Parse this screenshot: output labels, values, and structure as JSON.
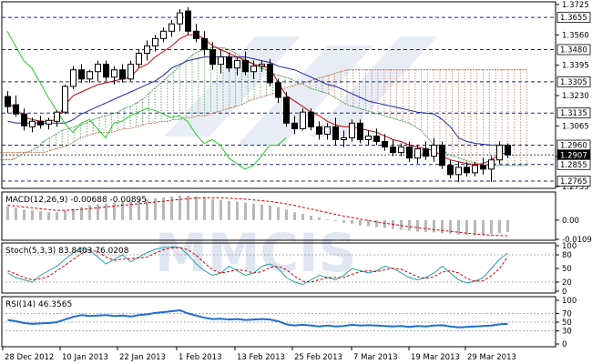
{
  "chart_data": {
    "type": "candlestick",
    "x_labels": [
      "28 Dec 2012",
      "10 Jan 2013",
      "22 Jan 2013",
      "1 Feb 2013",
      "13 Feb 2013",
      "25 Feb 2013",
      "7 Mar 2013",
      "19 Mar 2013",
      "29 Mar 2013"
    ],
    "price_ticks": [
      "1.3725",
      "1.3560",
      "1.3395",
      "1.3230",
      "1.3065",
      "1.2900",
      "1.2735"
    ],
    "price_levels": [
      "1.3655",
      "1.3480",
      "1.3305",
      "1.3135",
      "1.2960",
      "1.2907",
      "1.2855",
      "1.2765"
    ],
    "price_range": [
      1.2735,
      1.3725
    ],
    "candles": [
      [
        1.3225,
        1.3255,
        1.3135,
        1.317
      ],
      [
        1.318,
        1.323,
        1.3115,
        1.313
      ],
      [
        1.313,
        1.316,
        1.304,
        1.3065
      ],
      [
        1.306,
        1.311,
        1.303,
        1.309
      ],
      [
        1.309,
        1.312,
        1.305,
        1.307
      ],
      [
        1.3075,
        1.311,
        1.3045,
        1.3095
      ],
      [
        1.309,
        1.315,
        1.306,
        1.314
      ],
      [
        1.314,
        1.329,
        1.313,
        1.328
      ],
      [
        1.328,
        1.339,
        1.3265,
        1.337
      ],
      [
        1.337,
        1.34,
        1.33,
        1.332
      ],
      [
        1.332,
        1.337,
        1.33,
        1.336
      ],
      [
        1.336,
        1.342,
        1.331,
        1.34
      ],
      [
        1.34,
        1.342,
        1.331,
        1.333
      ],
      [
        1.333,
        1.339,
        1.329,
        1.337
      ],
      [
        1.337,
        1.34,
        1.33,
        1.332
      ],
      [
        1.332,
        1.342,
        1.331,
        1.34
      ],
      [
        1.34,
        1.348,
        1.338,
        1.346
      ],
      [
        1.346,
        1.353,
        1.342,
        1.35
      ],
      [
        1.35,
        1.356,
        1.347,
        1.354
      ],
      [
        1.354,
        1.36,
        1.352,
        1.358
      ],
      [
        1.358,
        1.364,
        1.355,
        1.362
      ],
      [
        1.362,
        1.37,
        1.358,
        1.368
      ],
      [
        1.369,
        1.371,
        1.356,
        1.358
      ],
      [
        1.358,
        1.362,
        1.352,
        1.354
      ],
      [
        1.354,
        1.358,
        1.345,
        1.348
      ],
      [
        1.348,
        1.352,
        1.337,
        1.34
      ],
      [
        1.34,
        1.348,
        1.335,
        1.344
      ],
      [
        1.344,
        1.346,
        1.336,
        1.338
      ],
      [
        1.338,
        1.344,
        1.334,
        1.342
      ],
      [
        1.342,
        1.347,
        1.334,
        1.336
      ],
      [
        1.336,
        1.342,
        1.332,
        1.339
      ],
      [
        1.339,
        1.342,
        1.336,
        1.34
      ],
      [
        1.34,
        1.343,
        1.328,
        1.33
      ],
      [
        1.33,
        1.332,
        1.319,
        1.322
      ],
      [
        1.322,
        1.325,
        1.306,
        1.308
      ],
      [
        1.308,
        1.312,
        1.302,
        1.305
      ],
      [
        1.305,
        1.316,
        1.304,
        1.314
      ],
      [
        1.314,
        1.316,
        1.304,
        1.306
      ],
      [
        1.306,
        1.309,
        1.299,
        1.302
      ],
      [
        1.302,
        1.308,
        1.299,
        1.306
      ],
      [
        1.306,
        1.311,
        1.296,
        1.299
      ],
      [
        1.299,
        1.304,
        1.295,
        1.3
      ],
      [
        1.3,
        1.31,
        1.298,
        1.308
      ],
      [
        1.308,
        1.31,
        1.297,
        1.299
      ],
      [
        1.299,
        1.304,
        1.296,
        1.301
      ],
      [
        1.301,
        1.305,
        1.296,
        1.298
      ],
      [
        1.298,
        1.302,
        1.293,
        1.295
      ],
      [
        1.295,
        1.299,
        1.29,
        1.292
      ],
      [
        1.292,
        1.297,
        1.29,
        1.295
      ],
      [
        1.295,
        1.298,
        1.287,
        1.289
      ],
      [
        1.289,
        1.296,
        1.286,
        1.294
      ],
      [
        1.294,
        1.298,
        1.288,
        1.29
      ],
      [
        1.29,
        1.3,
        1.287,
        1.296
      ],
      [
        1.296,
        1.298,
        1.283,
        1.285
      ],
      [
        1.285,
        1.288,
        1.278,
        1.28
      ],
      [
        1.28,
        1.287,
        1.276,
        1.284
      ],
      [
        1.284,
        1.287,
        1.279,
        1.281
      ],
      [
        1.281,
        1.287,
        1.279,
        1.285
      ],
      [
        1.285,
        1.289,
        1.28,
        1.283
      ],
      [
        1.283,
        1.29,
        1.276,
        1.288
      ],
      [
        1.288,
        1.298,
        1.286,
        1.296
      ],
      [
        1.296,
        1.297,
        1.289,
        1.2907
      ]
    ],
    "tenkan": [
      1.319,
      1.316,
      1.311,
      1.31,
      1.309,
      1.309,
      1.31,
      1.318,
      1.323,
      1.325,
      1.327,
      1.329,
      1.33,
      1.331,
      1.332,
      1.333,
      1.338,
      1.34,
      1.344,
      1.347,
      1.35,
      1.354,
      1.356,
      1.356,
      1.354,
      1.35,
      1.348,
      1.346,
      1.344,
      1.342,
      1.34,
      1.339,
      1.338,
      1.33,
      1.323,
      1.32,
      1.317,
      1.314,
      1.312,
      1.309,
      1.307,
      1.306,
      1.306,
      1.305,
      1.304,
      1.303,
      1.301,
      1.299,
      1.298,
      1.296,
      1.295,
      1.294,
      1.293,
      1.29,
      1.288,
      1.287,
      1.286,
      1.2855,
      1.286,
      1.288,
      1.291,
      1.292
    ],
    "kijun": [
      1.309,
      1.308,
      1.308,
      1.308,
      1.308,
      1.308,
      1.308,
      1.308,
      1.31,
      1.313,
      1.315,
      1.317,
      1.319,
      1.321,
      1.323,
      1.325,
      1.327,
      1.329,
      1.331,
      1.334,
      1.338,
      1.34,
      1.342,
      1.343,
      1.344,
      1.344,
      1.344,
      1.344,
      1.344,
      1.344,
      1.343,
      1.342,
      1.341,
      1.339,
      1.338,
      1.337,
      1.335,
      1.333,
      1.331,
      1.329,
      1.328,
      1.326,
      1.324,
      1.322,
      1.32,
      1.319,
      1.318,
      1.317,
      1.316,
      1.315,
      1.314,
      1.3135,
      1.313,
      1.31,
      1.306,
      1.3,
      1.298,
      1.297,
      1.2965,
      1.296,
      1.296,
      1.296
    ],
    "chikou": [
      1.358,
      1.35,
      1.342,
      1.338,
      1.33,
      1.322,
      1.315,
      1.308,
      1.303,
      1.308,
      1.31,
      1.305,
      1.3,
      1.308,
      1.309,
      1.312,
      1.314,
      1.316,
      1.315,
      1.313,
      1.311,
      1.312,
      1.309,
      1.302,
      1.297,
      1.299,
      1.296,
      1.289,
      1.286,
      1.283,
      1.285,
      1.29,
      1.296,
      1.296,
      1.3
    ],
    "senkou_a": [
      1.288,
      1.288,
      1.288,
      1.29,
      1.292,
      1.293,
      1.295,
      1.298,
      1.3,
      1.302,
      1.304,
      1.305,
      1.306,
      1.307,
      1.308,
      1.31,
      1.311,
      1.312,
      1.313,
      1.314,
      1.316,
      1.317,
      1.319,
      1.321,
      1.324,
      1.327,
      1.33,
      1.333,
      1.336,
      1.339,
      1.342,
      1.345,
      1.347,
      1.348,
      1.349,
      1.349,
      1.349,
      1.348,
      1.346,
      1.344,
      1.342,
      1.34,
      1.338,
      1.337,
      1.335,
      1.334,
      1.333,
      1.332,
      1.33,
      1.329,
      1.327,
      1.326,
      1.325,
      1.324,
      1.322,
      1.32,
      1.318,
      1.317,
      1.316,
      1.315,
      1.314,
      1.313,
      1.312,
      1.311,
      1.31,
      1.309,
      1.308,
      1.306,
      1.304,
      1.3,
      1.296,
      1.294,
      1.292,
      1.29,
      1.289,
      1.288,
      1.287,
      1.286,
      1.285,
      1.285,
      1.285,
      1.285,
      1.285,
      1.285,
      1.285,
      1.285
    ],
    "senkou_b": [
      1.292,
      1.292,
      1.292,
      1.292,
      1.292,
      1.292,
      1.292,
      1.292,
      1.293,
      1.294,
      1.295,
      1.296,
      1.298,
      1.3,
      1.301,
      1.302,
      1.303,
      1.303,
      1.303,
      1.304,
      1.305,
      1.305,
      1.306,
      1.307,
      1.308,
      1.308,
      1.309,
      1.309,
      1.31,
      1.31,
      1.311,
      1.311,
      1.312,
      1.312,
      1.313,
      1.314,
      1.315,
      1.316,
      1.317,
      1.318,
      1.32,
      1.321,
      1.322,
      1.323,
      1.324,
      1.325,
      1.327,
      1.328,
      1.329,
      1.33,
      1.331,
      1.332,
      1.333,
      1.334,
      1.335,
      1.336,
      1.337,
      1.337,
      1.337,
      1.337,
      1.337,
      1.337,
      1.337,
      1.337,
      1.337,
      1.337,
      1.337,
      1.337,
      1.337,
      1.337,
      1.337,
      1.337,
      1.337,
      1.337,
      1.337,
      1.337,
      1.337,
      1.337,
      1.337,
      1.337,
      1.337,
      1.337,
      1.337,
      1.337,
      1.337,
      1.337
    ],
    "macd": {
      "label": "MACD(12,26,9) -0.00688 -0.00895",
      "ticks": [
        "0.00",
        "-0.01095"
      ],
      "range": [
        -0.01095,
        0.0155
      ],
      "histogram": [
        0.008,
        0.007,
        0.006,
        0.0055,
        0.005,
        0.0045,
        0.0045,
        0.0055,
        0.0065,
        0.0075,
        0.0085,
        0.009,
        0.0095,
        0.01,
        0.0105,
        0.011,
        0.0115,
        0.012,
        0.0125,
        0.013,
        0.0135,
        0.014,
        0.014,
        0.0135,
        0.013,
        0.012,
        0.0115,
        0.011,
        0.0105,
        0.01,
        0.0095,
        0.009,
        0.0085,
        0.0075,
        0.006,
        0.0045,
        0.0035,
        0.0025,
        0.0015,
        0.0005,
        -0.0005,
        -0.0015,
        -0.002,
        -0.003,
        -0.0035,
        -0.004,
        -0.0045,
        -0.005,
        -0.0055,
        -0.006,
        -0.0065,
        -0.0068,
        -0.007,
        -0.0074,
        -0.0078,
        -0.0082,
        -0.0085,
        -0.0087,
        -0.0086,
        -0.008,
        -0.0074,
        -0.0069
      ],
      "signal": [
        0.0085,
        0.008,
        0.0075,
        0.007,
        0.0065,
        0.006,
        0.0056,
        0.0056,
        0.0058,
        0.0061,
        0.0066,
        0.007,
        0.0075,
        0.008,
        0.0085,
        0.0089,
        0.0094,
        0.0098,
        0.0103,
        0.0108,
        0.0113,
        0.0118,
        0.0122,
        0.0126,
        0.0128,
        0.0128,
        0.0127,
        0.0125,
        0.0122,
        0.0119,
        0.0115,
        0.0111,
        0.0106,
        0.01,
        0.0092,
        0.0083,
        0.0073,
        0.0063,
        0.0053,
        0.0043,
        0.0033,
        0.0023,
        0.0015,
        0.0006,
        -0.0002,
        -0.001,
        -0.0017,
        -0.0024,
        -0.0031,
        -0.0037,
        -0.0043,
        -0.0049,
        -0.0054,
        -0.0059,
        -0.0064,
        -0.0069,
        -0.0074,
        -0.0079,
        -0.0083,
        -0.0086,
        -0.0088,
        -0.0089
      ]
    },
    "stoch": {
      "label": "Stoch(5,3,3) 83.8403 76.0208",
      "ticks": [
        "100",
        "80",
        "50",
        "20",
        "0"
      ],
      "range": [
        0,
        100
      ],
      "main": [
        40,
        30,
        25,
        20,
        35,
        45,
        55,
        70,
        85,
        95,
        90,
        75,
        60,
        70,
        80,
        65,
        75,
        85,
        92,
        96,
        97,
        96,
        80,
        60,
        45,
        35,
        40,
        55,
        45,
        35,
        40,
        55,
        60,
        50,
        30,
        20,
        15,
        25,
        35,
        30,
        25,
        35,
        50,
        45,
        40,
        45,
        55,
        50,
        40,
        30,
        25,
        30,
        40,
        55,
        40,
        25,
        18,
        22,
        30,
        50,
        70,
        84
      ],
      "signal": [
        45,
        38,
        30,
        25,
        27,
        33,
        45,
        57,
        70,
        83,
        90,
        87,
        75,
        68,
        70,
        72,
        73,
        75,
        84,
        91,
        95,
        96,
        91,
        79,
        62,
        47,
        40,
        43,
        47,
        45,
        40,
        43,
        52,
        55,
        47,
        33,
        22,
        20,
        25,
        30,
        30,
        30,
        37,
        43,
        45,
        43,
        47,
        50,
        48,
        40,
        32,
        28,
        32,
        42,
        45,
        40,
        28,
        22,
        23,
        34,
        50,
        76
      ]
    },
    "rsi": {
      "label": "RSI(14) 46.3565",
      "ticks": [
        "100",
        "70",
        "50",
        "30",
        "0"
      ],
      "range": [
        0,
        100
      ],
      "values": [
        55,
        52,
        48,
        46,
        47,
        48,
        50,
        56,
        62,
        66,
        64,
        65,
        66,
        64,
        65,
        63,
        66,
        68,
        71,
        73,
        75,
        77,
        70,
        65,
        60,
        57,
        58,
        56,
        57,
        55,
        56,
        57,
        56,
        52,
        45,
        42,
        44,
        42,
        40,
        42,
        40,
        41,
        44,
        42,
        43,
        42,
        41,
        40,
        41,
        39,
        41,
        40,
        42,
        43,
        40,
        38,
        39,
        40,
        41,
        42,
        45,
        46
      ]
    },
    "watermark": "MMCIS"
  }
}
